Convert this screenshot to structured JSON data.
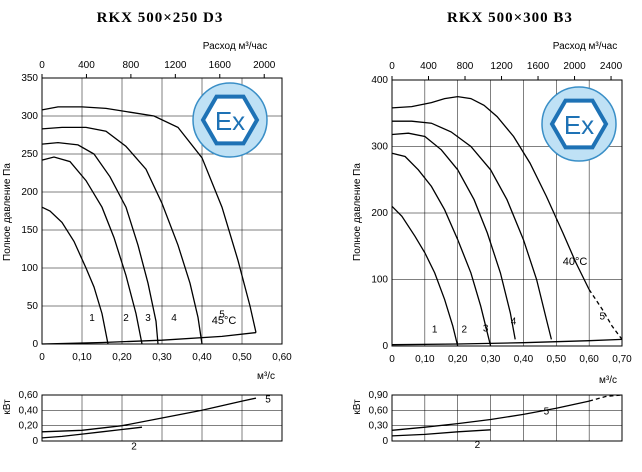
{
  "charts": [
    {
      "title": "RKX 500×250 D3",
      "top_axis_label": "Расход м³/час",
      "top_ticks": [
        "0",
        "400",
        "800",
        "1200",
        "1600",
        "2000"
      ],
      "ylabel": "Полное давление Па",
      "y_ticks": [
        "0",
        "50",
        "100",
        "150",
        "200",
        "250",
        "300",
        "350"
      ],
      "x_ticks": [
        "0",
        "0,10",
        "0,20",
        "0,30",
        "0,40",
        "0,50",
        "0,60"
      ],
      "xunit": "м³/с",
      "temp_label": "45°C",
      "curve_labels": [
        "1",
        "2",
        "3",
        "4",
        "5"
      ],
      "power_ylabel": "кВт",
      "power_ticks": [
        "0",
        "0,20",
        "0,40",
        "0,60"
      ],
      "power_curve_labels": [
        "5",
        "2"
      ],
      "ex_label": "Ex"
    },
    {
      "title": "RKX 500×300 B3",
      "top_axis_label": "Расход м³/час",
      "top_ticks": [
        "0",
        "400",
        "800",
        "1200",
        "1600",
        "2000",
        "2400"
      ],
      "ylabel": "Полное давление Па",
      "y_ticks": [
        "0",
        "100",
        "200",
        "300",
        "400"
      ],
      "x_ticks": [
        "0",
        "0,10",
        "0,20",
        "0,30",
        "0,40",
        "0,50",
        "0,60",
        "0,70"
      ],
      "xunit": "м³/с",
      "temp_label": "40°C",
      "curve_labels": [
        "1",
        "2",
        "3",
        "4",
        "5"
      ],
      "power_ylabel": "кВт",
      "power_ticks": [
        "0",
        "0,30",
        "0,60",
        "0,90"
      ],
      "power_curve_labels": [
        "5",
        "2"
      ],
      "ex_label": "Ex"
    }
  ],
  "chart_data": [
    {
      "type": "line",
      "title": "RKX 500×250 D3",
      "xlabel": "м³/с",
      "ylabel": "Полное давление Па",
      "xlim": [
        0,
        0.6
      ],
      "ylim": [
        0,
        350
      ],
      "x2_label": "Расход м³/час",
      "x2lim": [
        0,
        2160
      ],
      "series": [
        {
          "name": "1",
          "points": [
            [
              0,
              180
            ],
            [
              0.02,
              175
            ],
            [
              0.05,
              160
            ],
            [
              0.08,
              135
            ],
            [
              0.11,
              100
            ],
            [
              0.13,
              75
            ],
            [
              0.15,
              40
            ],
            [
              0.165,
              0
            ]
          ]
        },
        {
          "name": "2",
          "points": [
            [
              0,
              242
            ],
            [
              0.03,
              246
            ],
            [
              0.07,
              240
            ],
            [
              0.11,
              215
            ],
            [
              0.15,
              180
            ],
            [
              0.18,
              140
            ],
            [
              0.21,
              90
            ],
            [
              0.235,
              40
            ],
            [
              0.25,
              0
            ]
          ]
        },
        {
          "name": "3",
          "points": [
            [
              0,
              263
            ],
            [
              0.04,
              265
            ],
            [
              0.09,
              262
            ],
            [
              0.13,
              250
            ],
            [
              0.17,
              220
            ],
            [
              0.21,
              180
            ],
            [
              0.24,
              130
            ],
            [
              0.265,
              80
            ],
            [
              0.285,
              30
            ],
            [
              0.29,
              0
            ]
          ]
        },
        {
          "name": "4",
          "points": [
            [
              0,
              283
            ],
            [
              0.05,
              285
            ],
            [
              0.11,
              285
            ],
            [
              0.16,
              280
            ],
            [
              0.21,
              260
            ],
            [
              0.26,
              230
            ],
            [
              0.3,
              185
            ],
            [
              0.34,
              130
            ],
            [
              0.37,
              80
            ],
            [
              0.39,
              35
            ],
            [
              0.4,
              0
            ]
          ]
        },
        {
          "name": "5",
          "points": [
            [
              0,
              308
            ],
            [
              0.04,
              312
            ],
            [
              0.1,
              312
            ],
            [
              0.16,
              310
            ],
            [
              0.22,
              305
            ],
            [
              0.28,
              300
            ],
            [
              0.34,
              285
            ],
            [
              0.4,
              245
            ],
            [
              0.45,
              180
            ],
            [
              0.49,
              110
            ],
            [
              0.52,
              50
            ],
            [
              0.535,
              15
            ]
          ]
        },
        {
          "name": "45°C",
          "points": [
            [
              0,
              0
            ],
            [
              0.15,
              2
            ],
            [
              0.3,
              5
            ],
            [
              0.45,
              10
            ],
            [
              0.535,
              15
            ]
          ]
        }
      ],
      "power": {
        "ylabel": "кВт",
        "ylim": [
          0,
          0.6
        ],
        "series": [
          {
            "name": "5",
            "points": [
              [
                0,
                0.12
              ],
              [
                0.1,
                0.14
              ],
              [
                0.2,
                0.2
              ],
              [
                0.3,
                0.3
              ],
              [
                0.4,
                0.4
              ],
              [
                0.5,
                0.52
              ],
              [
                0.535,
                0.56
              ]
            ]
          },
          {
            "name": "2",
            "points": [
              [
                0,
                0.04
              ],
              [
                0.05,
                0.06
              ],
              [
                0.1,
                0.09
              ],
              [
                0.15,
                0.12
              ],
              [
                0.2,
                0.15
              ],
              [
                0.25,
                0.18
              ]
            ]
          }
        ]
      }
    },
    {
      "type": "line",
      "title": "RKX 500×300 B3",
      "xlabel": "м³/с",
      "ylabel": "Полное давление Па",
      "xlim": [
        0,
        0.7
      ],
      "ylim": [
        0,
        400
      ],
      "x2_label": "Расход м³/час",
      "x2lim": [
        0,
        2520
      ],
      "series": [
        {
          "name": "1",
          "points": [
            [
              0,
              210
            ],
            [
              0.03,
              195
            ],
            [
              0.07,
              165
            ],
            [
              0.1,
              140
            ],
            [
              0.13,
              110
            ],
            [
              0.16,
              70
            ],
            [
              0.185,
              30
            ],
            [
              0.2,
              0
            ]
          ]
        },
        {
          "name": "2",
          "points": [
            [
              0,
              290
            ],
            [
              0.04,
              285
            ],
            [
              0.08,
              265
            ],
            [
              0.12,
              240
            ],
            [
              0.16,
              205
            ],
            [
              0.2,
              160
            ],
            [
              0.24,
              110
            ],
            [
              0.27,
              60
            ],
            [
              0.29,
              20
            ],
            [
              0.3,
              0
            ]
          ]
        },
        {
          "name": "3",
          "points": [
            [
              0,
              318
            ],
            [
              0.05,
              320
            ],
            [
              0.1,
              315
            ],
            [
              0.15,
              295
            ],
            [
              0.2,
              265
            ],
            [
              0.25,
              220
            ],
            [
              0.29,
              170
            ],
            [
              0.33,
              110
            ],
            [
              0.36,
              50
            ],
            [
              0.375,
              10
            ]
          ]
        },
        {
          "name": "4",
          "points": [
            [
              0,
              338
            ],
            [
              0.06,
              338
            ],
            [
              0.12,
              335
            ],
            [
              0.18,
              322
            ],
            [
              0.24,
              300
            ],
            [
              0.3,
              265
            ],
            [
              0.35,
              220
            ],
            [
              0.4,
              160
            ],
            [
              0.44,
              100
            ],
            [
              0.47,
              40
            ],
            [
              0.485,
              10
            ]
          ]
        },
        {
          "name": "5",
          "points": [
            [
              0,
              358
            ],
            [
              0.06,
              360
            ],
            [
              0.12,
              366
            ],
            [
              0.16,
              372
            ],
            [
              0.2,
              375
            ],
            [
              0.24,
              372
            ],
            [
              0.28,
              362
            ],
            [
              0.32,
              345
            ],
            [
              0.37,
              315
            ],
            [
              0.42,
              275
            ],
            [
              0.47,
              225
            ],
            [
              0.52,
              170
            ],
            [
              0.56,
              125
            ],
            [
              0.6,
              85
            ]
          ]
        },
        {
          "name": "5 (extension)",
          "points": [
            [
              0.6,
              85
            ],
            [
              0.64,
              55
            ],
            [
              0.67,
              30
            ],
            [
              0.7,
              10
            ]
          ]
        },
        {
          "name": "40°C",
          "points": [
            [
              0,
              2
            ],
            [
              0.2,
              3
            ],
            [
              0.4,
              5
            ],
            [
              0.6,
              8
            ],
            [
              0.7,
              10
            ]
          ]
        }
      ],
      "power": {
        "ylabel": "кВт",
        "ylim": [
          0,
          0.9
        ],
        "series": [
          {
            "name": "5",
            "points": [
              [
                0,
                0.21
              ],
              [
                0.1,
                0.27
              ],
              [
                0.2,
                0.34
              ],
              [
                0.3,
                0.42
              ],
              [
                0.4,
                0.52
              ],
              [
                0.5,
                0.64
              ],
              [
                0.6,
                0.78
              ]
            ]
          },
          {
            "name": "5 (extension)",
            "points": [
              [
                0.6,
                0.78
              ],
              [
                0.65,
                0.87
              ],
              [
                0.7,
                0.95
              ]
            ]
          },
          {
            "name": "2",
            "points": [
              [
                0,
                0.1
              ],
              [
                0.1,
                0.13
              ],
              [
                0.2,
                0.18
              ],
              [
                0.3,
                0.22
              ]
            ]
          }
        ]
      }
    }
  ]
}
